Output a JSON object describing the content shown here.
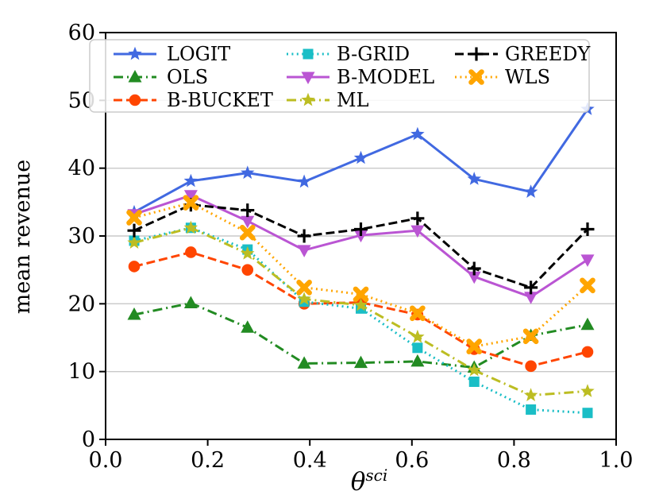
{
  "chart_data": {
    "type": "line",
    "title": "",
    "xlabel": "θ^sci",
    "xlabel_base": "θ",
    "xlabel_sup": "sci",
    "ylabel": "mean revenue",
    "xlim": [
      0.0,
      1.0
    ],
    "ylim": [
      0,
      60
    ],
    "x_tick_labels": [
      "0.0",
      "0.2",
      "0.4",
      "0.6",
      "0.8",
      "1.0"
    ],
    "x_ticks": [
      0.0,
      0.2,
      0.4,
      0.6,
      0.8,
      1.0
    ],
    "y_tick_labels": [
      "0",
      "10",
      "20",
      "30",
      "40",
      "50",
      "60"
    ],
    "y_ticks": [
      0,
      10,
      20,
      30,
      40,
      50,
      60
    ],
    "grid": "horizontal",
    "grid_color": "#c9c9c9",
    "x": [
      0.056,
      0.167,
      0.278,
      0.389,
      0.5,
      0.611,
      0.722,
      0.833,
      0.944
    ],
    "series": [
      {
        "name": "LOGIT",
        "color": "#4169e1",
        "linestyle": "solid",
        "marker": "star",
        "values": [
          33.5,
          38.1,
          39.3,
          38.0,
          41.5,
          45.0,
          38.4,
          36.5,
          48.7
        ]
      },
      {
        "name": "OLS",
        "color": "#228b22",
        "linestyle": "dashdot",
        "marker": "triangle-up",
        "values": [
          18.4,
          20.1,
          16.5,
          11.2,
          11.3,
          11.5,
          10.6,
          15.3,
          16.9
        ]
      },
      {
        "name": "B-BUCKET",
        "color": "#ff4500",
        "linestyle": "dashed",
        "marker": "circle",
        "values": [
          25.5,
          27.6,
          25.0,
          20.0,
          20.2,
          18.4,
          13.3,
          10.8,
          12.9
        ]
      },
      {
        "name": "B-GRID",
        "color": "#1abec6",
        "linestyle": "dotted",
        "marker": "square",
        "values": [
          29.3,
          31.2,
          28.0,
          20.3,
          19.3,
          13.5,
          8.5,
          4.4,
          3.9
        ]
      },
      {
        "name": "B-MODEL",
        "color": "#ba55d3",
        "linestyle": "solid",
        "marker": "triangle-down",
        "values": [
          33.2,
          36.0,
          32.2,
          27.9,
          30.1,
          30.8,
          24.0,
          21.0,
          26.5
        ]
      },
      {
        "name": "ML",
        "color": "#bcbd22",
        "linestyle": "dashdot",
        "marker": "star",
        "values": [
          29.0,
          31.2,
          27.4,
          20.7,
          19.8,
          15.1,
          10.2,
          6.5,
          7.1
        ]
      },
      {
        "name": "GREEDY",
        "color": "#000000",
        "linestyle": "dashed",
        "marker": "plus",
        "values": [
          30.8,
          34.6,
          33.8,
          30.0,
          31.0,
          32.6,
          25.2,
          22.4,
          31.0
        ]
      },
      {
        "name": "WLS",
        "color": "#ffa500",
        "linestyle": "dotted",
        "marker": "x-bold",
        "values": [
          32.7,
          34.9,
          30.5,
          22.4,
          21.4,
          18.6,
          13.7,
          15.2,
          22.7
        ]
      }
    ],
    "legend_position": "upper center",
    "legend_columns": [
      [
        "LOGIT",
        "OLS",
        "B-BUCKET"
      ],
      [
        "B-GRID",
        "B-MODEL",
        "ML"
      ],
      [
        "GREEDY",
        "WLS"
      ]
    ]
  }
}
